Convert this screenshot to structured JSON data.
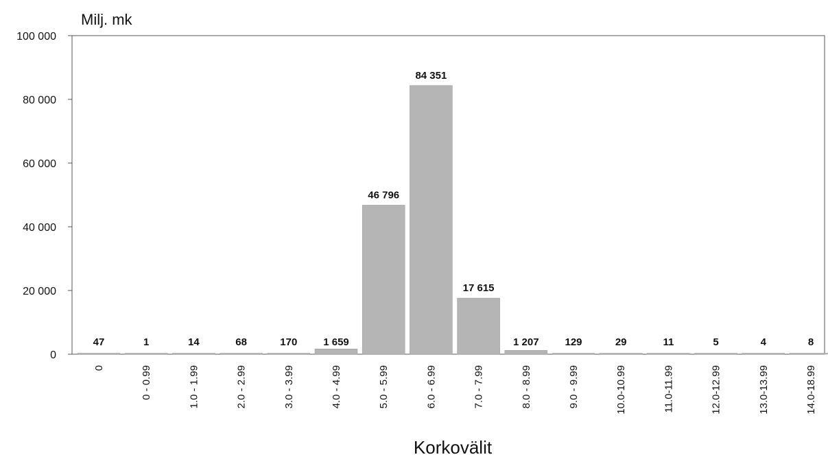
{
  "chart_data": {
    "type": "bar",
    "title": "",
    "ylabel": "Milj. mk",
    "xlabel": "Korkovälit",
    "ylim": [
      0,
      100000
    ],
    "yticks": [
      0,
      20000,
      40000,
      60000,
      80000,
      100000
    ],
    "ytick_labels": [
      "0",
      "20 000",
      "40 000",
      "60 000",
      "80 000",
      "100 000"
    ],
    "grid": false,
    "categories": [
      "0",
      "0 - 0.99",
      "1.0 - 1.99",
      "2.0 - 2.99",
      "3.0 - 3.99",
      "4.0 - 4.99",
      "5.0 - 5.99",
      "6.0 - 6.99",
      "7.0 - 7.99",
      "8.0 - 8.99",
      "9.0 - 9.99",
      "10.0-10.99",
      "11.0-11.99",
      "12.0-12.99",
      "13.0-13.99",
      "14.0-18.99"
    ],
    "values": [
      47,
      1,
      14,
      68,
      170,
      1659,
      46796,
      84351,
      17615,
      1207,
      129,
      29,
      11,
      5,
      4,
      8
    ],
    "value_labels": [
      "47",
      "1",
      "14",
      "68",
      "170",
      "1 659",
      "46 796",
      "84 351",
      "17 615",
      "1 207",
      "129",
      "29",
      "11",
      "5",
      "4",
      "8"
    ],
    "bar_color": "#b5b5b5"
  }
}
